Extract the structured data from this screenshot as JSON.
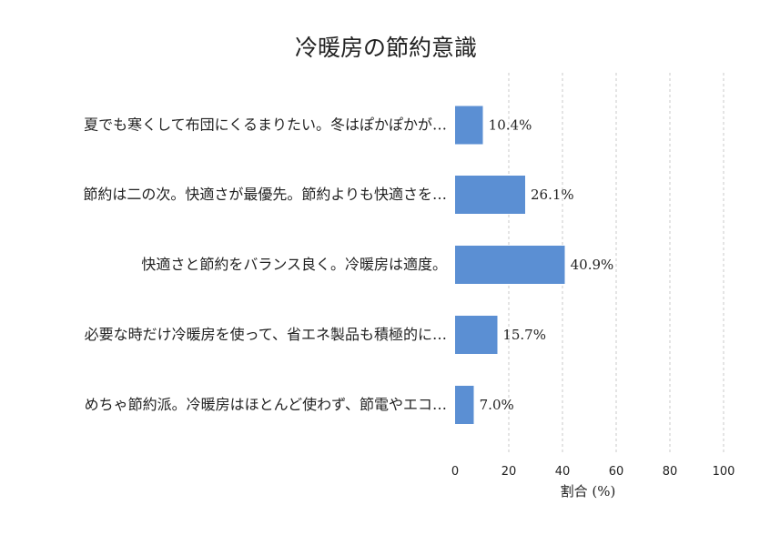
{
  "chart_data": {
    "type": "bar",
    "orientation": "horizontal",
    "title": "冷暖房の節約意識",
    "xlabel": "割合 (%)",
    "ylabel": "",
    "xlim": [
      0,
      100
    ],
    "xticks": [
      0,
      20,
      40,
      60,
      80,
      100
    ],
    "grid": true,
    "bar_color": "#5b8fd3",
    "categories": [
      "夏でも寒くして布団にくるまりたい。冬はぽかぽかが…",
      "節約は二の次。快適さが最優先。節約よりも快適さを…",
      "快適さと節約をバランス良く。冷暖房は適度。",
      "必要な時だけ冷暖房を使って、省エネ製品も積極的に…",
      "めちゃ節約派。冷暖房はほとんど使わず、節電やエコ…"
    ],
    "values": [
      10.4,
      26.1,
      40.9,
      15.7,
      7.0
    ],
    "data_labels": [
      "10.4%",
      "26.1%",
      "40.9%",
      "15.7%",
      "7.0%"
    ]
  }
}
